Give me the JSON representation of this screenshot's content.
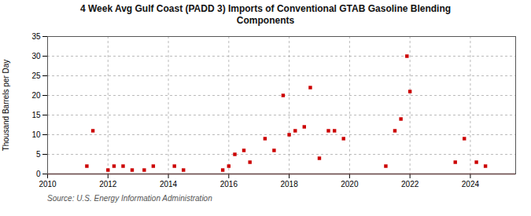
{
  "chart_data": {
    "type": "scatter",
    "title": "4 Week Avg Gulf Coast (PADD 3) Imports of Conventional GTAB Gasoline Blending\nComponents",
    "y_label": "Thousand Barrels per Day",
    "source": "Source: U.S. Energy Information Administration",
    "x": [
      2011.3,
      2011.5,
      2012.0,
      2012.2,
      2012.5,
      2012.8,
      2013.2,
      2013.5,
      2014.2,
      2014.5,
      2015.8,
      2016.0,
      2016.2,
      2016.5,
      2016.7,
      2017.2,
      2017.5,
      2017.8,
      2018.0,
      2018.2,
      2018.5,
      2018.7,
      2019.0,
      2019.3,
      2019.5,
      2019.8,
      2021.2,
      2021.5,
      2021.7,
      2021.9,
      2022.0,
      2023.5,
      2023.8,
      2024.2,
      2024.5
    ],
    "values": [
      2,
      11,
      1,
      2,
      2,
      1,
      1,
      2,
      2,
      1,
      1,
      2,
      5,
      6,
      3,
      9,
      6,
      20,
      10,
      11,
      12,
      22,
      4,
      11,
      11,
      9,
      2,
      11,
      14,
      30,
      21,
      3,
      9,
      3,
      2
    ],
    "color": "#cc0000",
    "marker": "square",
    "reference_lines": [
      {
        "y": 0,
        "color": "#8b0000"
      }
    ],
    "xlim": [
      2010,
      2025.5
    ],
    "ylim": [
      0,
      35
    ],
    "xticks": [
      2010,
      2012,
      2014,
      2016,
      2018,
      2020,
      2022,
      2024
    ],
    "yticks": [
      0,
      5,
      10,
      15,
      20,
      25,
      30,
      35
    ],
    "grid": true
  }
}
